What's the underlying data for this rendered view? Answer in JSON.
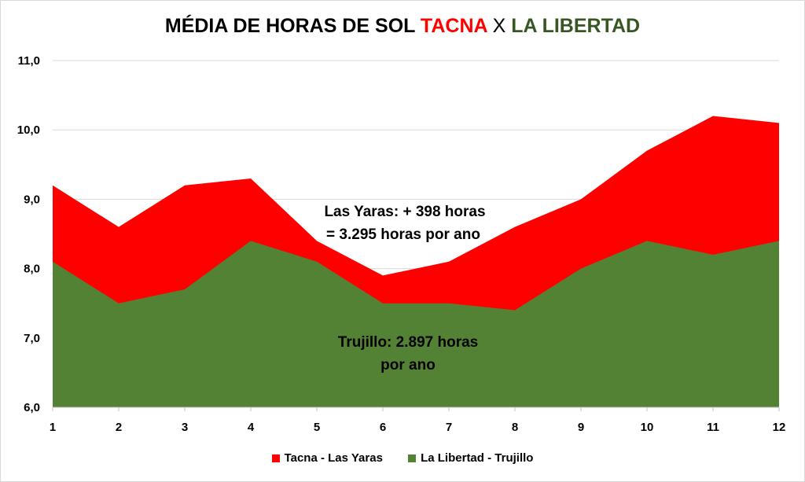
{
  "chart_data": {
    "type": "area",
    "title": {
      "part1": "MÉDIA DE HORAS DE SOL",
      "part2": "TACNA",
      "part3": "X",
      "part4": "LA LIBERTAD"
    },
    "x": [
      1,
      2,
      3,
      4,
      5,
      6,
      7,
      8,
      9,
      10,
      11,
      12
    ],
    "x_tick_labels": [
      "1",
      "2",
      "3",
      "4",
      "5",
      "6",
      "7",
      "8",
      "9",
      "10",
      "11",
      "12"
    ],
    "ylim": [
      6.0,
      11.0
    ],
    "y_tick_labels": [
      "6,0",
      "7,0",
      "8,0",
      "9,0",
      "10,0",
      "11,0"
    ],
    "grid": true,
    "legend": "bottom",
    "series": [
      {
        "name": "Tacna - Las Yaras",
        "color": "#ff0000",
        "values": [
          9.2,
          8.6,
          9.2,
          9.3,
          8.4,
          7.9,
          8.1,
          8.6,
          9.0,
          9.7,
          10.2,
          10.1
        ]
      },
      {
        "name": "La Libertad - Trujillo",
        "color": "#548235",
        "values": [
          8.1,
          7.5,
          7.7,
          8.4,
          8.1,
          7.5,
          7.5,
          7.4,
          8.0,
          8.4,
          8.2,
          8.4
        ]
      }
    ],
    "annotations": {
      "tacna_line1": "Las Yaras: + 398 horas",
      "tacna_line2": "= 3.295 horas por ano",
      "trujillo_line1": "Trujillo: 2.897 horas",
      "trujillo_line2": "por ano"
    },
    "title_colors": {
      "tacna": "#ff0000",
      "libertad": "#375623"
    }
  }
}
